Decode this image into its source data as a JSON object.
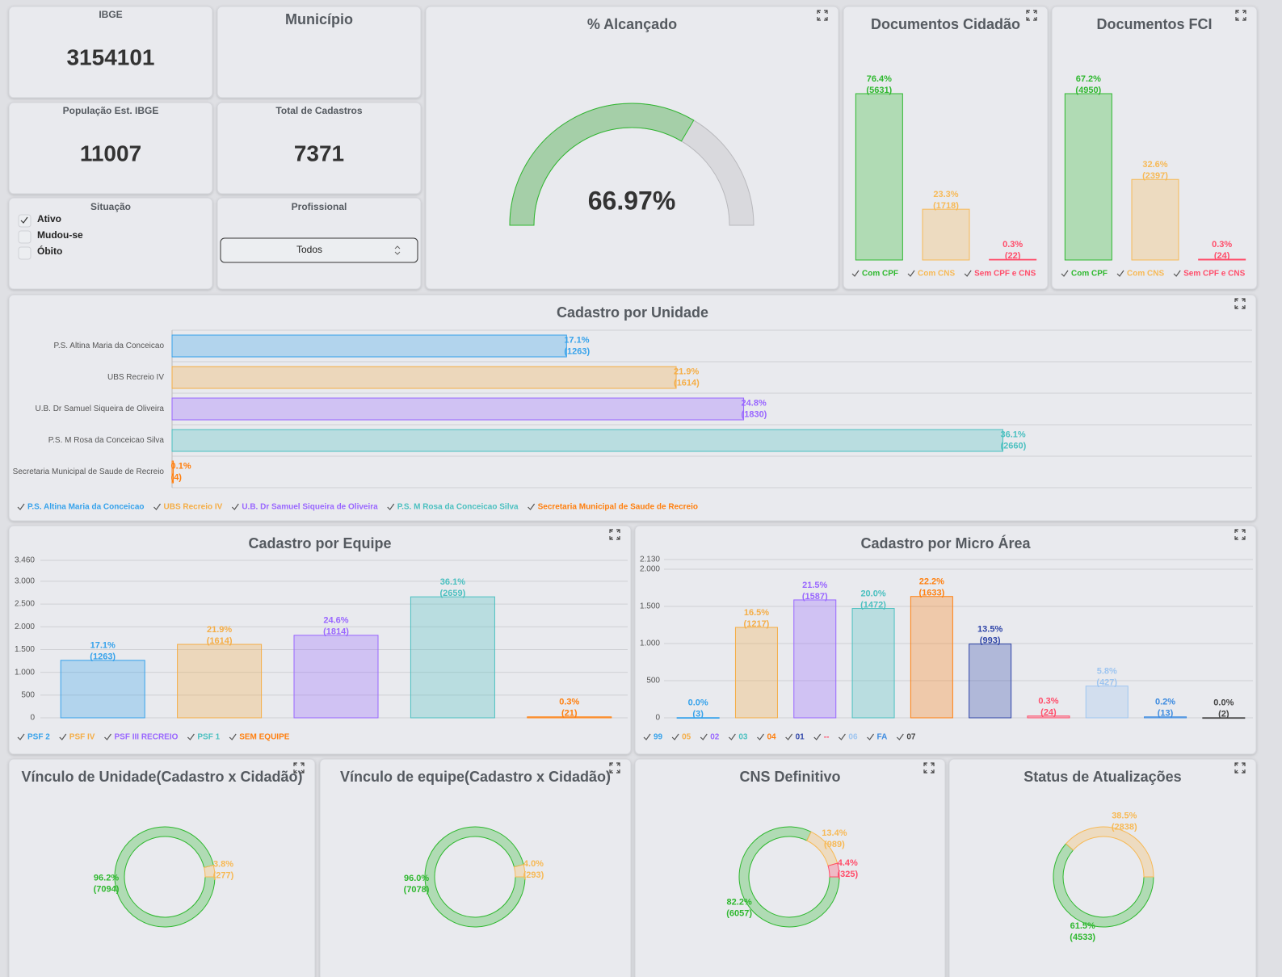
{
  "kpis": [
    {
      "label": "IBGE",
      "value": 3154101
    },
    {
      "label": "Município"
    },
    {
      "label": "População Est. IBGE",
      "value": 11007
    },
    {
      "label": "Total de Cadastros",
      "value": 7371
    }
  ],
  "filters": {
    "situacao": {
      "label": "Situação",
      "options": [
        {
          "label": "Ativo",
          "checked": true
        },
        {
          "label": "Mudou-se",
          "checked": false
        },
        {
          "label": "Óbito",
          "checked": false
        }
      ]
    },
    "profissional": {
      "label": "Profissional",
      "selected": "Todos"
    }
  },
  "chart_data": [
    {
      "type": "gauge",
      "title": "% Alcançado",
      "value": 66.97,
      "value_label": "66.97%",
      "ylim": [
        0,
        100
      ],
      "color": "#2eb82e",
      "track_color": "#d9d9dd"
    },
    {
      "type": "bar",
      "title": "Documentos Cidadão",
      "categories": [
        "Com CPF",
        "Com CNS",
        "Sem CPF e CNS"
      ],
      "values": [
        5631,
        1718,
        22
      ],
      "value_labels": [
        "(5631)",
        "(1718)",
        "(22)"
      ],
      "percents": [
        76.4,
        23.3,
        0.3
      ],
      "percent_labels": [
        "76.4%",
        "23.3%",
        "0.3%"
      ],
      "colors": [
        "#2eb82e",
        "#f7b955",
        "#ff4d6a"
      ]
    },
    {
      "type": "bar",
      "title": "Documentos FCI",
      "categories": [
        "Com CPF",
        "Com CNS",
        "Sem CPF e CNS"
      ],
      "values": [
        4950,
        2397,
        24
      ],
      "value_labels": [
        "(4950)",
        "(2397)",
        "(24)"
      ],
      "percents": [
        67.2,
        32.6,
        0.3
      ],
      "percent_labels": [
        "67.2%",
        "32.6%",
        "0.3%"
      ],
      "colors": [
        "#2eb82e",
        "#f7b955",
        "#ff4d6a"
      ]
    },
    {
      "type": "hbar",
      "title": "Cadastro por Unidade",
      "categories": [
        "P.S. Altina Maria da Conceicao",
        "UBS Recreio IV",
        "U.B. Dr Samuel Siqueira de Oliveira",
        "P.S. M Rosa da Conceicao Silva",
        "Secretaria Municipal de Saude de Recreio"
      ],
      "values": [
        1263,
        1614,
        1830,
        2660,
        4
      ],
      "value_labels": [
        "(1263)",
        "(1614)",
        "(1830)",
        "(2660)",
        "(4)"
      ],
      "percents": [
        17.1,
        21.9,
        24.8,
        36.1,
        0.1
      ],
      "percent_labels": [
        "17.1%",
        "21.9%",
        "24.8%",
        "36.1%",
        "0.1%"
      ],
      "colors": [
        "#36a2eb",
        "#f5ad45",
        "#9966ff",
        "#4bc0c0",
        "#ff7f0e"
      ]
    },
    {
      "type": "bar",
      "title": "Cadastro por Equipe",
      "categories": [
        "PSF 2",
        "PSF IV",
        "PSF III RECREIO",
        "PSF 1",
        "SEM EQUIPE"
      ],
      "values": [
        1263,
        1614,
        1814,
        2659,
        21
      ],
      "value_labels": [
        "(1263)",
        "(1614)",
        "(1814)",
        "(2659)",
        "(21)"
      ],
      "percents": [
        17.1,
        21.9,
        24.6,
        36.1,
        0.3
      ],
      "percent_labels": [
        "17.1%",
        "21.9%",
        "24.6%",
        "36.1%",
        "0.3%"
      ],
      "colors": [
        "#36a2eb",
        "#f5ad45",
        "#9966ff",
        "#4bc0c0",
        "#ff7f0e"
      ],
      "ylim": [
        0,
        3460
      ],
      "yticks": [
        0,
        500,
        {
          "value": 1000,
          "label": "1.000"
        },
        {
          "value": 1500,
          "label": "1.500"
        },
        {
          "value": 2000,
          "label": "2.000"
        },
        {
          "value": 2500,
          "label": "2.500"
        },
        {
          "value": 3000,
          "label": "3.000"
        },
        {
          "value": 3460,
          "label": "3.460"
        }
      ],
      "grid": true
    },
    {
      "type": "bar",
      "title": "Cadastro por Micro Área",
      "categories": [
        "99",
        "05",
        "02",
        "03",
        "04",
        "01",
        "--",
        "06",
        "FA",
        "07"
      ],
      "values": [
        3,
        1217,
        1587,
        1472,
        1633,
        993,
        24,
        427,
        13,
        2
      ],
      "value_labels": [
        "(3)",
        "(1217)",
        "(1587)",
        "(1472)",
        "(1633)",
        "(993)",
        "(24)",
        "(427)",
        "(13)",
        "(2)"
      ],
      "percents": [
        0.0,
        16.5,
        21.5,
        20.0,
        22.2,
        13.5,
        0.3,
        5.8,
        0.2,
        0.0
      ],
      "percent_labels": [
        "0.0%",
        "16.5%",
        "21.5%",
        "20.0%",
        "22.2%",
        "13.5%",
        "0.3%",
        "5.8%",
        "0.2%",
        "0.0%"
      ],
      "colors": [
        "#36a2eb",
        "#f5ad45",
        "#9966ff",
        "#4bc0c0",
        "#ff7f0e",
        "#2f45a8",
        "#ff4d6a",
        "#9ec5f0",
        "#3d8be0",
        "#444444"
      ],
      "ylim": [
        0,
        2130
      ],
      "yticks": [
        0,
        500,
        {
          "value": 1000,
          "label": "1.000"
        },
        {
          "value": 1500,
          "label": "1.500"
        },
        {
          "value": 2000,
          "label": "2.000"
        },
        {
          "value": 2130,
          "label": "2.130"
        }
      ],
      "grid": true
    },
    {
      "type": "donut",
      "title": "Vínculo de Unidade(Cadastro x Cidadão)",
      "values": [
        7094,
        277
      ],
      "value_labels": [
        "(7094)",
        "(277)"
      ],
      "percents": [
        96.2,
        3.8
      ],
      "percent_labels": [
        "96.2%",
        "3.8%"
      ],
      "colors": [
        "#2eb82e",
        "#f7b955"
      ]
    },
    {
      "type": "donut",
      "title": "Vínculo de equipe(Cadastro x Cidadão)",
      "values": [
        7078,
        293
      ],
      "value_labels": [
        "(7078)",
        "(293)"
      ],
      "percents": [
        96.0,
        4.0
      ],
      "percent_labels": [
        "96.0%",
        "4.0%"
      ],
      "colors": [
        "#2eb82e",
        "#f7b955"
      ]
    },
    {
      "type": "donut",
      "title": "CNS Definitivo",
      "values": [
        6057,
        989,
        325
      ],
      "value_labels": [
        "(6057)",
        "(989)",
        "(325)"
      ],
      "percents": [
        82.2,
        13.4,
        4.4
      ],
      "percent_labels": [
        "82.2%",
        "13.4%",
        "4.4%"
      ],
      "colors": [
        "#2eb82e",
        "#f7b955",
        "#ff4d6a"
      ]
    },
    {
      "type": "donut",
      "title": "Status de Atualizações",
      "values": [
        4533,
        2838
      ],
      "value_labels": [
        "(4533)",
        "(2838)"
      ],
      "percents": [
        61.5,
        38.5
      ],
      "percent_labels": [
        "61.5%",
        "38.5%"
      ],
      "colors": [
        "#2eb82e",
        "#f7b955"
      ]
    }
  ]
}
